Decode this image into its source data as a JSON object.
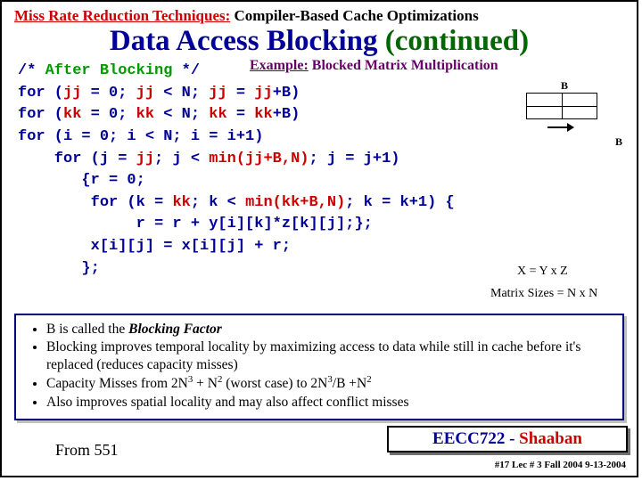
{
  "header": {
    "left": "Miss Rate Reduction Techniques:",
    "right": " Compiler-Based Cache Optimizations"
  },
  "title": {
    "main": "Data Access Blocking ",
    "cont": "(continued)"
  },
  "example": {
    "prefix": "Example:",
    "rest": "  Blocked Matrix Multiplication"
  },
  "code": {
    "l1a": "/* ",
    "l1b": "After Blocking",
    "l1c": " */",
    "l2a": "for (",
    "l2b": "jj",
    "l2c": " = 0; ",
    "l2d": "jj",
    "l2e": " < N; ",
    "l2f": "jj",
    "l2g": " = ",
    "l2h": "jj",
    "l2i": "+B)",
    "l3a": "for (",
    "l3b": "kk",
    "l3c": " = 0; ",
    "l3d": "kk",
    "l3e": " < N; ",
    "l3f": "kk",
    "l3g": " = ",
    "l3h": "kk",
    "l3i": "+B)",
    "l4": "for (i = 0; i < N; i = i+1)",
    "l5a": "    for (j = ",
    "l5b": "jj",
    "l5c": "; j < ",
    "l5d": "min(jj+B,N)",
    "l5e": "; j = j+1)",
    "l6": "       {r = 0;",
    "l7a": "        for (k = ",
    "l7b": "kk",
    "l7c": "; k < ",
    "l7d": "min(kk+B,N)",
    "l7e": "; k = k+1) {",
    "l8": "             r = r + y[i][k]*z[k][j];};",
    "l9": "        x[i][j] = x[i][j] + r;",
    "l10": "       };"
  },
  "diagram": {
    "B": "B"
  },
  "notes": {
    "eq": "X = Y x  Z",
    "sizes": "Matrix Sizes = N x N"
  },
  "bullets": {
    "b1a": "B is called the ",
    "b1b": "Blocking Factor",
    "b2": "Blocking improves temporal locality by maximizing access to data while still in cache before it's replaced (reduces capacity misses)",
    "b3a": "Capacity Misses from  2N",
    "b3b": " + N",
    "b3c": " (worst case)  to  2N",
    "b3d": "/B +N",
    "b4": "Also improves spatial locality and may also affect conflict misses"
  },
  "footer": {
    "from": "From 551",
    "course1": "EECC722 ",
    "dash": "- ",
    "course2": "Shaaban",
    "lec": "#17   Lec # 3   Fall 2004  9-13-2004"
  }
}
